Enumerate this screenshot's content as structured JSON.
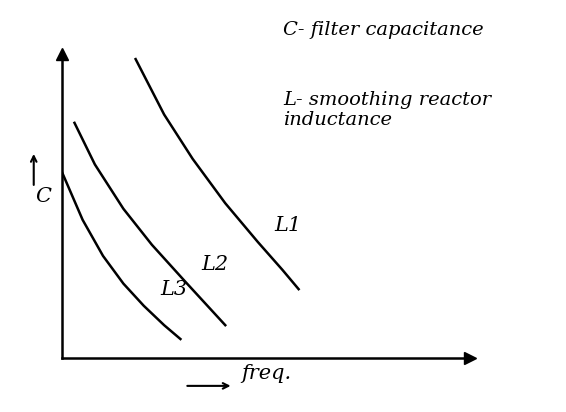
{
  "chart_data": {
    "type": "line",
    "x_label": "freq.",
    "y_label": "C",
    "annotations": [
      "C- filter capacitance",
      "L- smoothing reactor inductance"
    ],
    "series": [
      {
        "name": "L1",
        "color": "#000000",
        "x": [
          1.8,
          2.5,
          3.2,
          4.0,
          4.8,
          5.4,
          5.8
        ],
        "values": [
          10.8,
          8.8,
          7.2,
          5.6,
          4.2,
          3.2,
          2.5
        ]
      },
      {
        "name": "L2",
        "color": "#000000",
        "x": [
          0.3,
          0.8,
          1.5,
          2.2,
          3.0,
          3.5,
          4.0
        ],
        "values": [
          8.5,
          7.0,
          5.4,
          4.1,
          2.8,
          2.0,
          1.2
        ]
      },
      {
        "name": "L3",
        "color": "#000000",
        "x": [
          0.0,
          0.5,
          1.0,
          1.5,
          2.0,
          2.5,
          2.9
        ],
        "values": [
          6.7,
          5.0,
          3.7,
          2.7,
          1.9,
          1.2,
          0.7
        ]
      }
    ],
    "xlim": [
      0,
      10
    ],
    "ylim": [
      0,
      11
    ],
    "xticks": [],
    "yticks": [],
    "tick_labels": false,
    "grid": false
  }
}
